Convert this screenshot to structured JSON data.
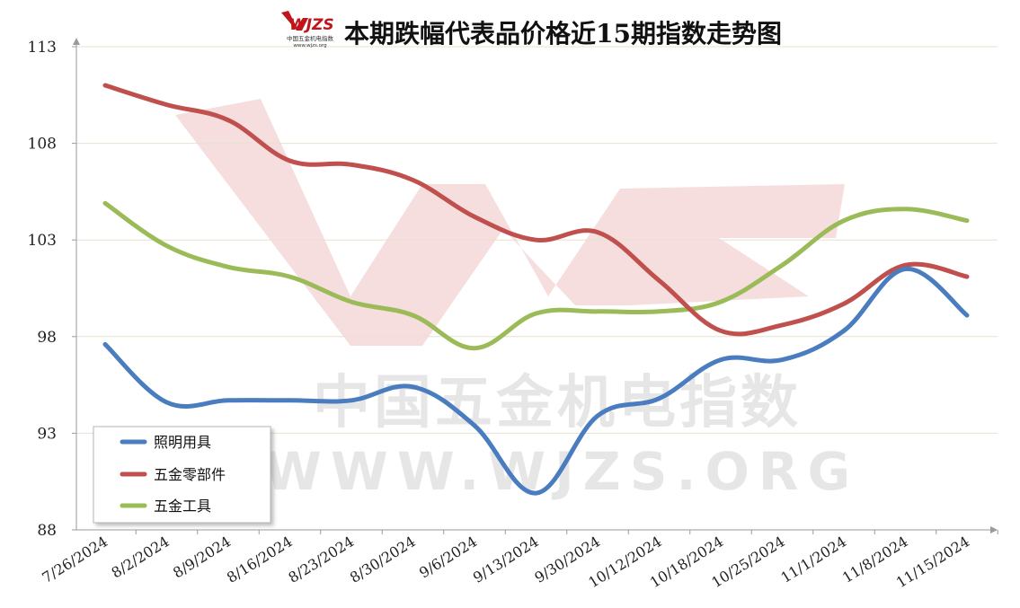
{
  "header": {
    "logo_text": "WJZS",
    "logo_subtext": "中国五金机电指数",
    "logo_url_text": "www.wjzs.org"
  },
  "watermark": {
    "line1": "中国五金机电指数",
    "line2": "WWW.WJZS.ORG"
  },
  "chart_data": {
    "type": "line",
    "title": "本期跌幅代表品价格近15期指数走势图",
    "xlabel": "",
    "ylabel": "",
    "x": [
      "7/26/2024",
      "8/2/2024",
      "8/9/2024",
      "8/16/2024",
      "8/23/2024",
      "8/30/2024",
      "9/6/2024",
      "9/13/2024",
      "9/30/2024",
      "10/12/2024",
      "10/18/2024",
      "10/25/2024",
      "11/1/2024",
      "11/8/2024",
      "11/15/2024"
    ],
    "yticks": [
      88,
      93,
      98,
      103,
      108,
      113
    ],
    "ylim": [
      88,
      113
    ],
    "grid": true,
    "legend_position": "bottom-left",
    "series": [
      {
        "name": "照明用具",
        "color": "#4a7cc0",
        "values": [
          97.6,
          94.6,
          94.7,
          94.7,
          94.7,
          95.4,
          93.4,
          89.9,
          93.9,
          94.8,
          96.8,
          96.8,
          98.3,
          101.5,
          99.1
        ]
      },
      {
        "name": "五金零部件",
        "color": "#c0504d",
        "values": [
          111,
          110,
          109.2,
          107.1,
          106.9,
          106.1,
          104.2,
          103,
          103.4,
          100.9,
          98.3,
          98.6,
          99.7,
          101.7,
          101.1
        ]
      },
      {
        "name": "五金工具",
        "color": "#9bbb59",
        "values": [
          104.9,
          102.7,
          101.6,
          101.1,
          99.8,
          99.1,
          97.4,
          99.2,
          99.3,
          99.3,
          99.8,
          101.7,
          104,
          104.6,
          104
        ]
      }
    ]
  }
}
